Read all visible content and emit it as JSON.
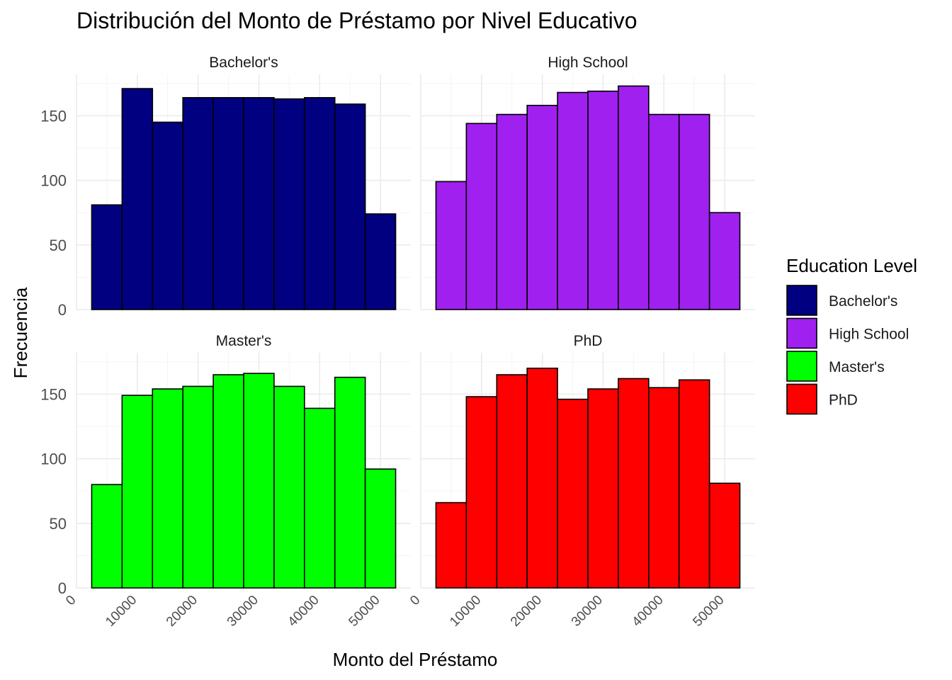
{
  "chart_data": {
    "type": "bar",
    "title": "Distribución del Monto de Préstamo por Nivel Educativo",
    "xlabel": "Monto del Préstamo",
    "ylabel": "Frecuencia",
    "bin_edges": [
      2500,
      7500,
      12500,
      17500,
      22500,
      27500,
      32500,
      37500,
      42500,
      47500,
      52500
    ],
    "xlim": [
      0,
      55000
    ],
    "ylim": [
      0,
      182
    ],
    "x_ticks": [
      0,
      10000,
      20000,
      30000,
      40000,
      50000
    ],
    "x_tick_labels": [
      "0",
      "10000",
      "20000",
      "30000",
      "40000",
      "50000"
    ],
    "y_ticks": [
      0,
      50,
      100,
      150
    ],
    "y_tick_labels": [
      "0",
      "50",
      "100",
      "150"
    ],
    "grid": true,
    "legend": {
      "title": "Education Level",
      "position": "right",
      "entries": [
        {
          "label": "Bachelor's",
          "color": "#000080"
        },
        {
          "label": "High School",
          "color": "#A020F0"
        },
        {
          "label": "Master's",
          "color": "#00FF00"
        },
        {
          "label": "PhD",
          "color": "#FF0000"
        }
      ]
    },
    "series": [
      {
        "name": "Bachelor's",
        "color": "#000080",
        "values": [
          81,
          171,
          145,
          164,
          164,
          164,
          163,
          164,
          159,
          74
        ]
      },
      {
        "name": "High School",
        "color": "#A020F0",
        "values": [
          99,
          144,
          151,
          158,
          168,
          169,
          173,
          151,
          151,
          75
        ]
      },
      {
        "name": "Master's",
        "color": "#00FF00",
        "values": [
          80,
          149,
          154,
          156,
          165,
          166,
          156,
          139,
          163,
          92
        ]
      },
      {
        "name": "PhD",
        "color": "#FF0000",
        "values": [
          66,
          148,
          165,
          170,
          146,
          154,
          162,
          155,
          161,
          81
        ]
      }
    ]
  }
}
